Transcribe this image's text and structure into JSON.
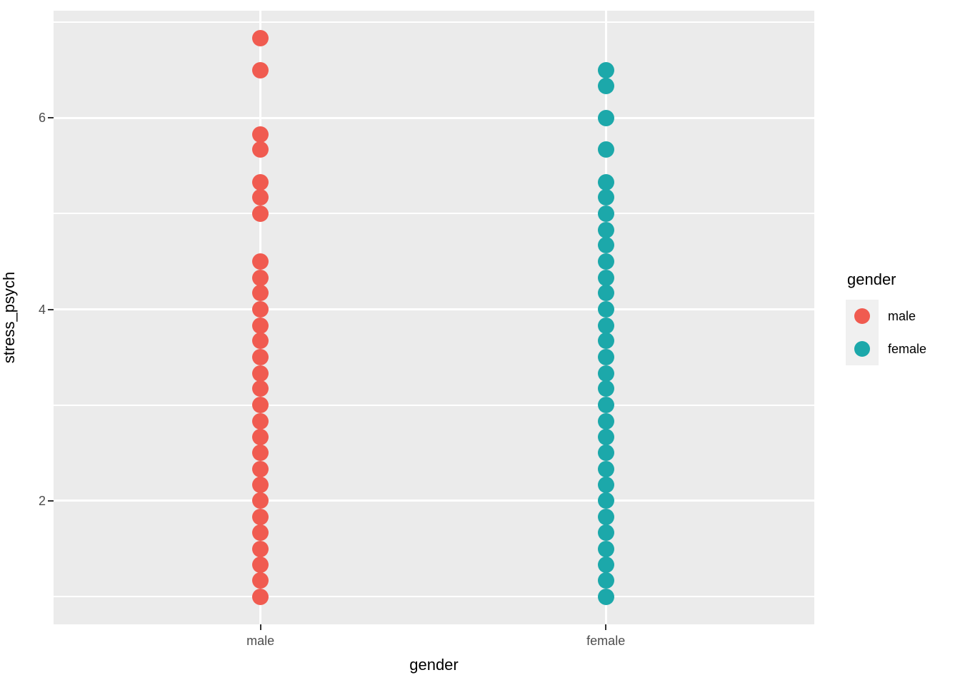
{
  "chart_data": {
    "type": "scatter",
    "title": "",
    "xlabel": "gender",
    "ylabel": "stress_psych",
    "categories": [
      "male",
      "female"
    ],
    "series": [
      {
        "name": "male",
        "color": "#F05B50",
        "values": [
          6.83,
          6.5,
          5.83,
          5.67,
          5.33,
          5.17,
          5,
          4.5,
          4.33,
          4.17,
          4,
          3.83,
          3.67,
          3.5,
          3.33,
          3.17,
          3,
          2.83,
          2.67,
          2.5,
          2.33,
          2.17,
          2,
          1.83,
          1.67,
          1.5,
          1.33,
          1.17,
          1
        ]
      },
      {
        "name": "female",
        "color": "#1CA8AA",
        "values": [
          6.5,
          6.33,
          6,
          5.67,
          5.33,
          5.17,
          5,
          4.83,
          4.67,
          4.5,
          4.33,
          4.17,
          4,
          3.83,
          3.67,
          3.5,
          3.33,
          3.17,
          3,
          2.83,
          2.67,
          2.5,
          2.33,
          2.17,
          2,
          1.83,
          1.67,
          1.5,
          1.33,
          1.17,
          1
        ]
      }
    ],
    "y_axis": {
      "ticks": [
        6,
        4,
        2
      ],
      "minor_gridlines": [
        7,
        5,
        3,
        1
      ],
      "range": [
        0.71,
        7.12
      ]
    },
    "x_axis": {
      "tick_labels": [
        "male",
        "female"
      ]
    },
    "grid": "on",
    "legend": {
      "title": "gender",
      "position": "right",
      "entries": [
        "male",
        "female"
      ]
    }
  }
}
